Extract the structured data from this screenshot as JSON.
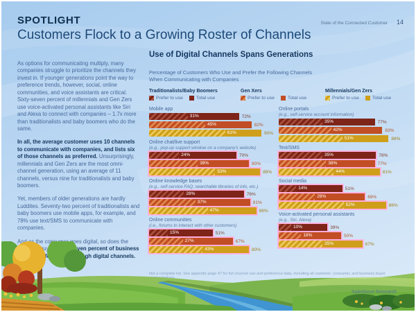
{
  "page": {
    "eyebrow": "SPOTLIGHT",
    "title": "Customers Flock to a Growing Roster of Channels",
    "header_right": "State of the Connected Customer",
    "page_number": "14",
    "footer_brand": "Salesforce Research"
  },
  "colors": {
    "heading_navy": "#14365F",
    "body_blue": "#47689A",
    "highlight_pink": "#FFAEDE",
    "sky_blue": "#B9D6F2"
  },
  "sidebar": {
    "paragraphs": [
      {
        "segments": [
          {
            "text": "As options for communicating multiply, many companies struggle to prioritize the channels they invest in. If younger generations point the way to preference trends, however, social, online communities, and voice assistants are critical. Sixty-seven percent of millennials and Gen Zers use voice-activated personal assistants like Siri and Alexa to connect with companies – 1.7x more than traditionalists and baby boomers who do the same.",
            "bold": false
          }
        ]
      },
      {
        "segments": [
          {
            "text": "In all, the average customer uses 10 channels to communicate with companies, and lists six of those channels as preferred.",
            "bold": true
          },
          {
            "text": " Unsurprisingly, millennials and Gen Zers are the most omni-channel generation, using an average of 11 channels, versus nine for traditionalists and baby boomers.",
            "bold": false
          }
        ]
      },
      {
        "segments": [
          {
            "text": "Yet, members of older generations are hardly Luddites. Seventy-two percent of traditionalists and baby boomers use mobile apps, for example, and 78% use text/SMS to communicate with companies.",
            "bold": false
          }
        ]
      },
      {
        "segments": [
          {
            "text": "And as the consumer goes digital, so does the business buyer. ",
            "bold": false
          },
          {
            "text": "Sixty-seven percent of business buyers prefer to buy through digital channels.",
            "bold": true
          }
        ]
      }
    ]
  },
  "chart_data": {
    "type": "bar",
    "title": "Use of Digital Channels Spans Generations",
    "subtitle": "Percentage of Customers Who Use and Prefer the Following Channels\nWhen Communicating with Companies",
    "unit": "%",
    "xlim": [
      0,
      100
    ],
    "legend_position": "top",
    "series": [
      {
        "name": "Traditionalists/Baby Boomers",
        "prefer_label": "Prefer to use",
        "total_label": "Total use",
        "color": "#7E2418",
        "hatch_color": "#A8503A",
        "value_label_color": "#7D3F2E"
      },
      {
        "name": "Gen Xers",
        "prefer_label": "Prefer to use",
        "total_label": "Total use",
        "color": "#C14E24",
        "hatch_color": "#E28A4E",
        "value_label_color": "#B5572B"
      },
      {
        "name": "Millennials/Gen Zers",
        "prefer_label": "Prefer to use",
        "total_label": "Total use",
        "color": "#CF9F1B",
        "hatch_color": "#ECCA5C",
        "value_label_color": "#A1801F"
      }
    ],
    "groups": [
      {
        "label": "Mobile app",
        "sublabel": "",
        "column": "left",
        "highlight": false,
        "bars": [
          {
            "prefer": 31,
            "total": 72
          },
          {
            "prefer": 45,
            "total": 82
          },
          {
            "prefer": 61,
            "total": 90
          }
        ]
      },
      {
        "label": "Online chat/live support",
        "sublabel": "(e.g., pop-up support window on a company's website)",
        "column": "left",
        "highlight": true,
        "bars": [
          {
            "prefer": 24,
            "total": 70
          },
          {
            "prefer": 39,
            "total": 80
          },
          {
            "prefer": 53,
            "total": 89
          }
        ]
      },
      {
        "label": "Online knowledge bases",
        "sublabel": "(e.g., self-service FAQ, searchable libraries of info, etc.)",
        "column": "left",
        "highlight": true,
        "bars": [
          {
            "prefer": 28,
            "total": 76
          },
          {
            "prefer": 37,
            "total": 81
          },
          {
            "prefer": 47,
            "total": 86
          }
        ]
      },
      {
        "label": "Online communities",
        "sublabel": "(i.e., forums to interact with other customers)",
        "column": "left",
        "highlight": true,
        "bars": [
          {
            "prefer": 15,
            "total": 51
          },
          {
            "prefer": 27,
            "total": 67
          },
          {
            "prefer": 43,
            "total": 80
          }
        ]
      },
      {
        "label": "Online portals",
        "sublabel": "(e.g., self-service account information)",
        "column": "right",
        "highlight": false,
        "bars": [
          {
            "prefer": 35,
            "total": 77
          },
          {
            "prefer": 42,
            "total": 83
          },
          {
            "prefer": 51,
            "total": 88
          }
        ]
      },
      {
        "label": "Text/SMS",
        "sublabel": "",
        "column": "right",
        "highlight": true,
        "bars": [
          {
            "prefer": 35,
            "total": 78
          },
          {
            "prefer": 38,
            "total": 77
          },
          {
            "prefer": 44,
            "total": 81
          }
        ]
      },
      {
        "label": "Social media",
        "sublabel": "",
        "column": "right",
        "highlight": true,
        "bars": [
          {
            "prefer": 14,
            "total": 51
          },
          {
            "prefer": 29,
            "total": 69
          },
          {
            "prefer": 52,
            "total": 86
          }
        ]
      },
      {
        "label": "Voice-activated personal assistants",
        "sublabel": "(e.g., Siri, Alexa)",
        "column": "right",
        "highlight": true,
        "bars": [
          {
            "prefer": 10,
            "total": 39
          },
          {
            "prefer": 18,
            "total": 50
          },
          {
            "prefer": 35,
            "total": 67
          }
        ]
      }
    ],
    "footnote": "Not a complete list. See appendix page 47 for full channel use and preference data, including all customer, consumer, and business buyer segmentations."
  }
}
